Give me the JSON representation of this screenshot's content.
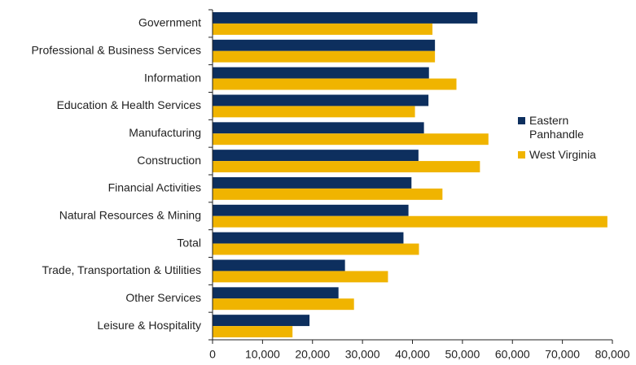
{
  "chart_data": {
    "type": "bar",
    "orientation": "horizontal",
    "categories": [
      "Government",
      "Professional & Business Services",
      "Information",
      "Education & Health Services",
      "Manufacturing",
      "Construction",
      "Financial Activities",
      "Natural Resources & Mining",
      "Total",
      "Trade, Transportation & Utilities",
      "Other Services",
      "Leisure & Hospitality"
    ],
    "series": [
      {
        "name": "Eastern Panhandle",
        "color": "#0d2f5e",
        "values": [
          53000,
          44500,
          43300,
          43200,
          42300,
          41200,
          39800,
          39200,
          38200,
          26500,
          25200,
          19400
        ]
      },
      {
        "name": "West Virginia",
        "color": "#f0b400",
        "values": [
          44000,
          44500,
          48800,
          40500,
          55200,
          53500,
          46000,
          79000,
          41300,
          35100,
          28300,
          16000
        ]
      }
    ],
    "xlim": [
      0,
      80000
    ],
    "xticks": [
      0,
      {
        "value": 10000,
        "label": "10,000"
      },
      {
        "value": 20000,
        "label": "20,000"
      },
      {
        "value": 30000,
        "label": "30,000"
      },
      {
        "value": 40000,
        "label": "40,000"
      },
      {
        "value": 50000,
        "label": "50,000"
      },
      {
        "value": 60000,
        "label": "60,000"
      },
      {
        "value": 70000,
        "label": "70,000"
      },
      {
        "value": 80000,
        "label": "80,000"
      }
    ],
    "legend": "right"
  }
}
